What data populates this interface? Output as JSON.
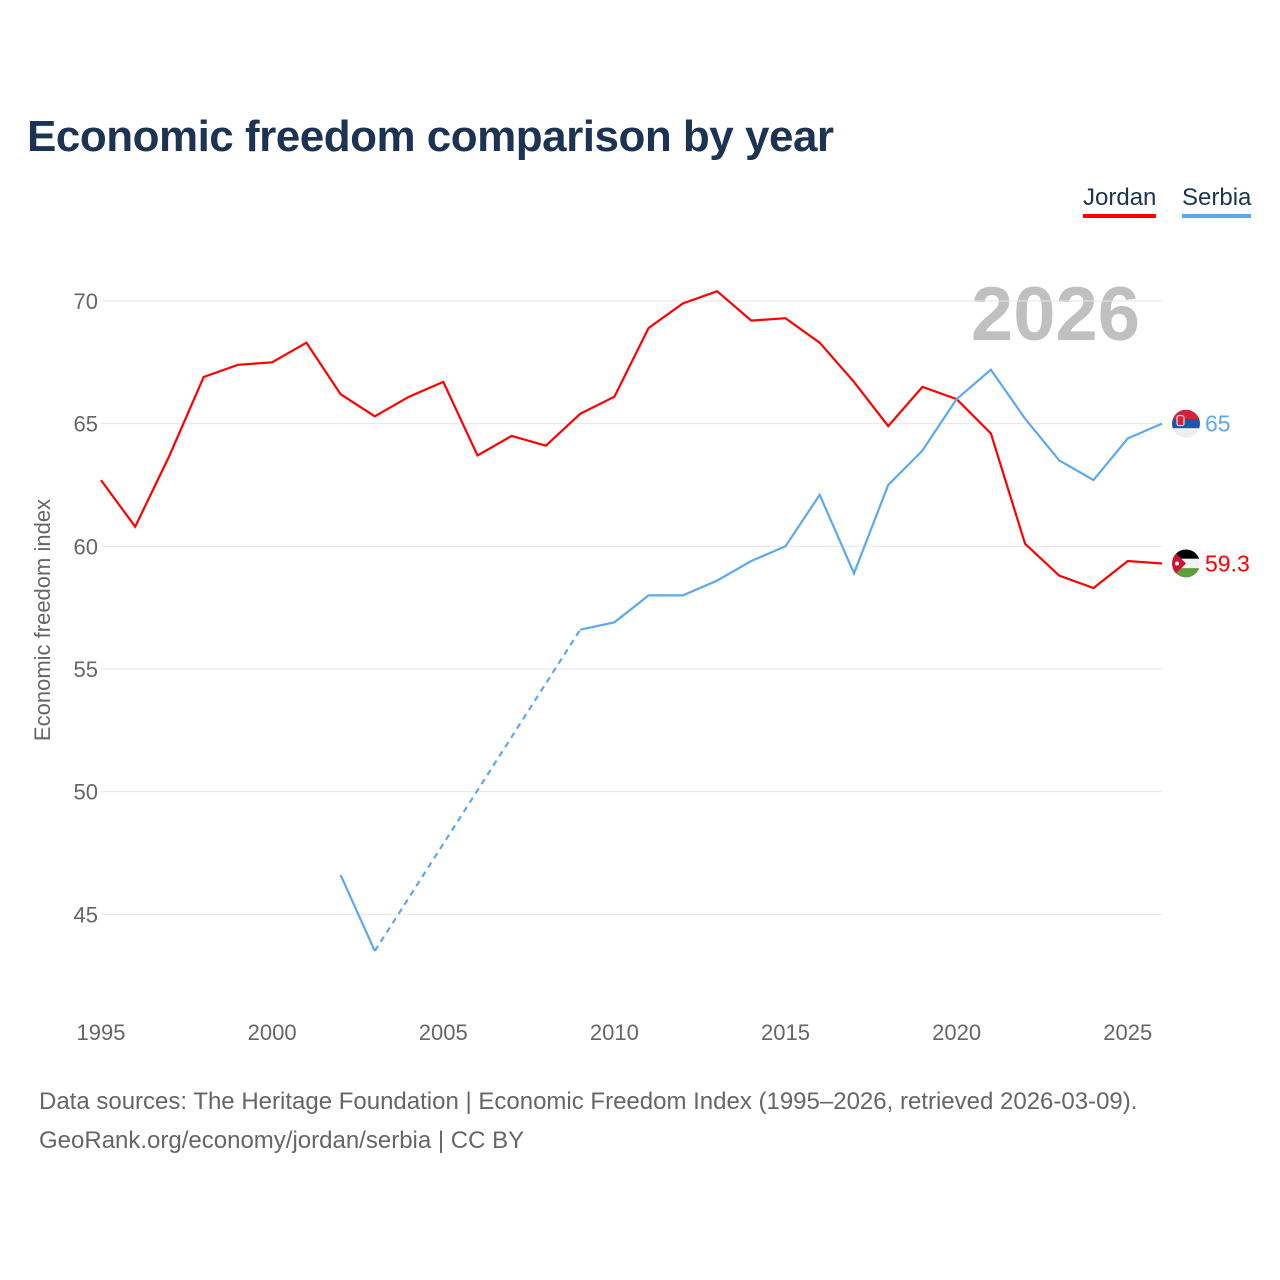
{
  "chart_data": {
    "type": "line",
    "title": "Economic freedom comparison by year",
    "ylabel": "Economic freedom index",
    "xlabel": "",
    "ylim": [
      41,
      72
    ],
    "xlim": [
      1995,
      2026
    ],
    "yticks": [
      45,
      50,
      55,
      60,
      65,
      70
    ],
    "xticks": [
      1995,
      2000,
      2005,
      2010,
      2015,
      2020,
      2025
    ],
    "grid": true,
    "legend_position": "top-right",
    "year_watermark": "2026",
    "x": [
      1995,
      1996,
      1997,
      1998,
      1999,
      2000,
      2001,
      2002,
      2003,
      2004,
      2005,
      2006,
      2007,
      2008,
      2009,
      2010,
      2011,
      2012,
      2013,
      2014,
      2015,
      2016,
      2017,
      2018,
      2019,
      2020,
      2021,
      2022,
      2023,
      2024,
      2025,
      2026
    ],
    "series": [
      {
        "name": "Jordan",
        "color": "#ff0000",
        "end_label": "59.3",
        "values": [
          62.7,
          60.8,
          63.7,
          66.9,
          67.4,
          67.5,
          68.3,
          66.2,
          65.3,
          66.1,
          66.7,
          63.7,
          64.5,
          64.1,
          65.4,
          66.1,
          68.9,
          69.9,
          70.4,
          69.2,
          69.3,
          68.3,
          66.7,
          64.9,
          66.5,
          66.0,
          64.6,
          60.1,
          58.8,
          58.3,
          59.4,
          59.3
        ]
      },
      {
        "name": "Serbia",
        "color": "#5ea8ee",
        "end_label": "65",
        "values": [
          null,
          null,
          null,
          null,
          null,
          null,
          null,
          46.6,
          43.5,
          null,
          null,
          null,
          null,
          null,
          56.6,
          56.9,
          58.0,
          58.0,
          58.6,
          59.4,
          60.0,
          62.1,
          58.9,
          62.5,
          63.9,
          66.0,
          67.2,
          65.2,
          63.5,
          62.7,
          64.4,
          65.0
        ]
      }
    ]
  },
  "footer": {
    "sources": "Data sources: The Heritage Foundation | Economic Freedom Index (1995–2026, retrieved 2026-03-09).",
    "credit": "GeoRank.org/economy/jordan/serbia | CC BY"
  }
}
